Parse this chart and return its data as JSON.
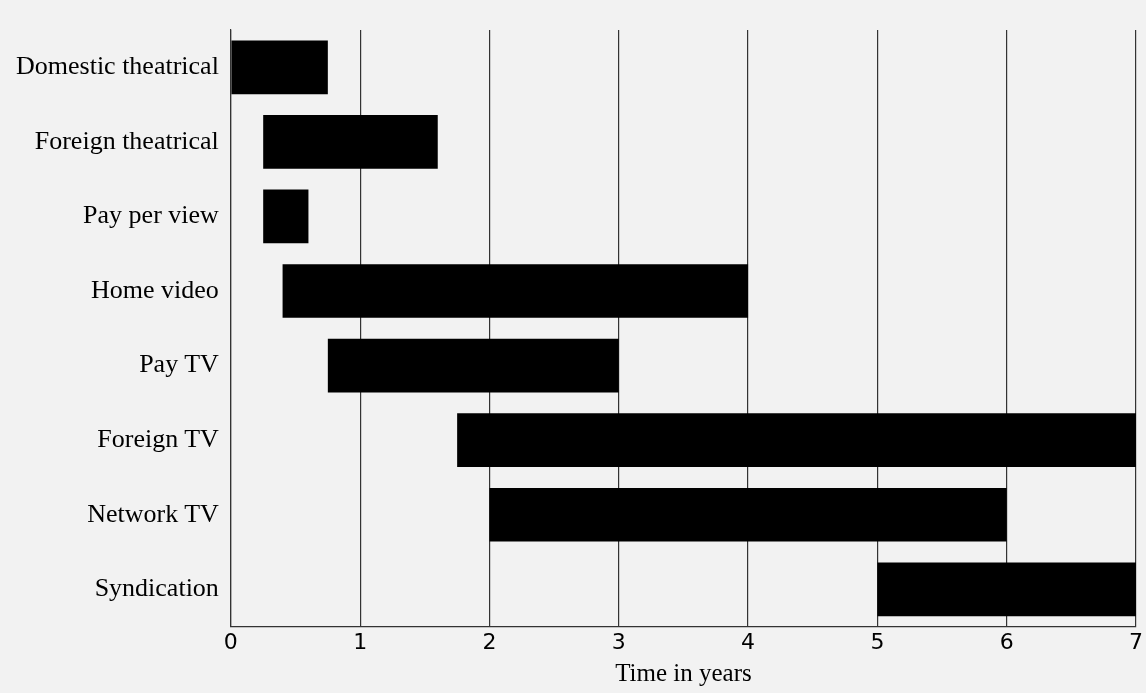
{
  "chart_data": {
    "type": "bar",
    "orientation": "horizontal",
    "xlabel": "Time in years",
    "categories": [
      "Domestic theatrical",
      "Foreign theatrical",
      "Pay per view",
      "Home video",
      "Pay TV",
      "Foreign TV",
      "Network TV",
      "Syndication"
    ],
    "base": [
      0,
      0.25,
      0.25,
      0.4,
      0.75,
      1.75,
      2,
      5
    ],
    "values": [
      0.75,
      1.35,
      0.35,
      3.6,
      2.25,
      5.25,
      4,
      2
    ],
    "color": "#000000",
    "xlim": [
      0,
      7
    ],
    "xticks": [
      0,
      1,
      2,
      3,
      4,
      5,
      6,
      7
    ],
    "grid": "x"
  }
}
